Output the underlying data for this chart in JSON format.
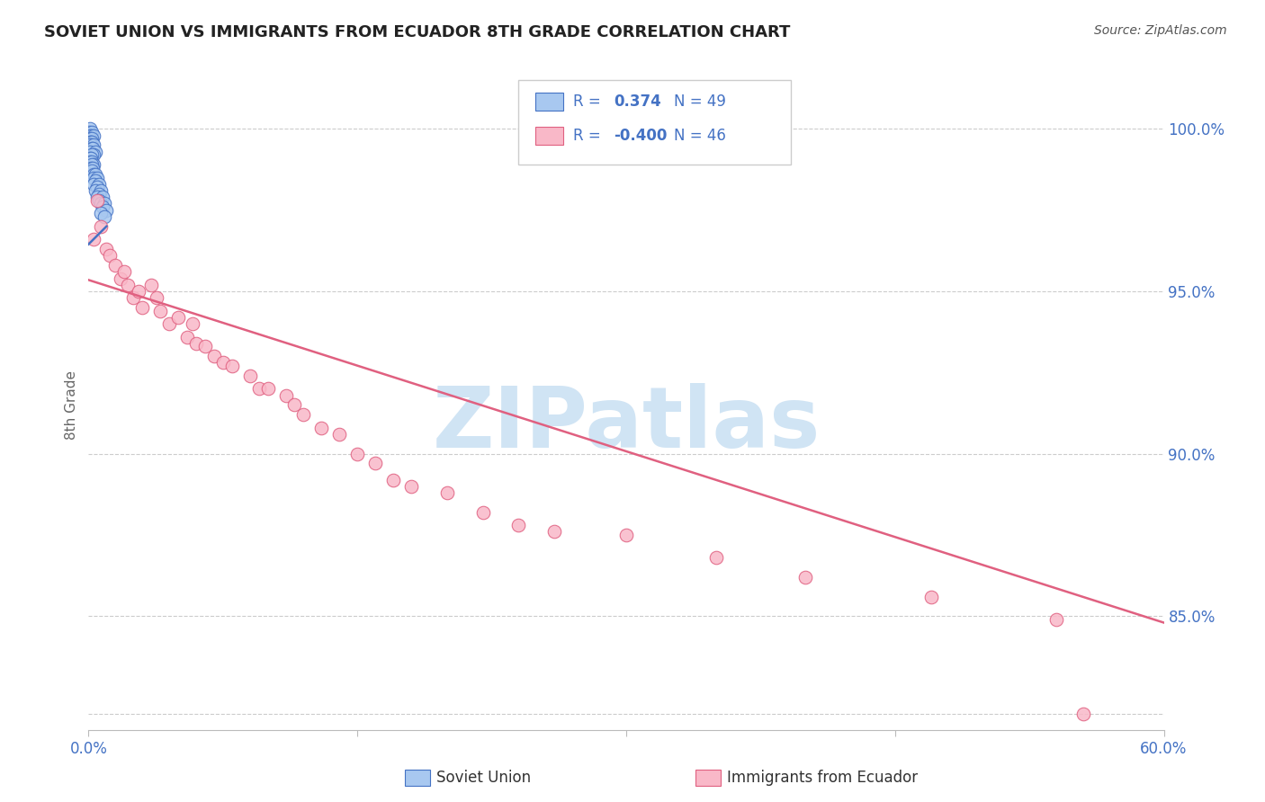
{
  "title": "SOVIET UNION VS IMMIGRANTS FROM ECUADOR 8TH GRADE CORRELATION CHART",
  "source": "Source: ZipAtlas.com",
  "ylabel": "8th Grade",
  "ytick_labels": [
    "85.0%",
    "90.0%",
    "95.0%",
    "100.0%"
  ],
  "ytick_values": [
    0.85,
    0.9,
    0.95,
    1.0
  ],
  "xlim": [
    0.0,
    0.6
  ],
  "ylim": [
    0.815,
    1.015
  ],
  "legend_blue_r": "0.374",
  "legend_blue_n": "49",
  "legend_pink_r": "-0.400",
  "legend_pink_n": "46",
  "blue_color": "#a8c8f0",
  "pink_color": "#f9b8c8",
  "blue_edge_color": "#4472c4",
  "pink_edge_color": "#e06080",
  "blue_line_color": "#4472c4",
  "pink_line_color": "#e06080",
  "watermark_color": "#d0e4f4",
  "background_color": "#ffffff",
  "grid_color": "#cccccc",
  "blue_x": [
    0.001,
    0.0005,
    0.002,
    0.001,
    0.0015,
    0.003,
    0.001,
    0.002,
    0.0008,
    0.0012,
    0.002,
    0.0015,
    0.001,
    0.003,
    0.002,
    0.0025,
    0.001,
    0.004,
    0.003,
    0.002,
    0.0008,
    0.0015,
    0.001,
    0.002,
    0.003,
    0.0018,
    0.0012,
    0.0025,
    0.002,
    0.003,
    0.004,
    0.003,
    0.005,
    0.004,
    0.003,
    0.006,
    0.005,
    0.004,
    0.007,
    0.006,
    0.005,
    0.008,
    0.006,
    0.007,
    0.009,
    0.008,
    0.01,
    0.007,
    0.009
  ],
  "blue_y": [
    1.0,
    0.999,
    0.999,
    0.998,
    0.998,
    0.998,
    0.997,
    0.997,
    0.996,
    0.996,
    0.996,
    0.995,
    0.995,
    0.995,
    0.994,
    0.994,
    0.993,
    0.993,
    0.992,
    0.992,
    0.991,
    0.991,
    0.99,
    0.99,
    0.989,
    0.989,
    0.988,
    0.988,
    0.987,
    0.986,
    0.986,
    0.985,
    0.985,
    0.984,
    0.983,
    0.983,
    0.982,
    0.981,
    0.981,
    0.98,
    0.979,
    0.979,
    0.978,
    0.977,
    0.977,
    0.976,
    0.975,
    0.974,
    0.973
  ],
  "pink_x": [
    0.003,
    0.005,
    0.007,
    0.01,
    0.012,
    0.015,
    0.018,
    0.02,
    0.022,
    0.025,
    0.028,
    0.03,
    0.035,
    0.038,
    0.04,
    0.045,
    0.05,
    0.055,
    0.058,
    0.06,
    0.065,
    0.07,
    0.075,
    0.08,
    0.09,
    0.095,
    0.1,
    0.11,
    0.115,
    0.12,
    0.13,
    0.14,
    0.15,
    0.16,
    0.17,
    0.18,
    0.2,
    0.22,
    0.24,
    0.26,
    0.3,
    0.35,
    0.4,
    0.47,
    0.54,
    0.555
  ],
  "pink_y": [
    0.966,
    0.978,
    0.97,
    0.963,
    0.961,
    0.958,
    0.954,
    0.956,
    0.952,
    0.948,
    0.95,
    0.945,
    0.952,
    0.948,
    0.944,
    0.94,
    0.942,
    0.936,
    0.94,
    0.934,
    0.933,
    0.93,
    0.928,
    0.927,
    0.924,
    0.92,
    0.92,
    0.918,
    0.915,
    0.912,
    0.908,
    0.906,
    0.9,
    0.897,
    0.892,
    0.89,
    0.888,
    0.882,
    0.878,
    0.876,
    0.875,
    0.868,
    0.862,
    0.856,
    0.849,
    0.82
  ],
  "pink_trend_x": [
    0.0,
    0.6
  ],
  "pink_trend_y": [
    0.9535,
    0.848
  ],
  "blue_trend_x": [
    0.0,
    0.01
  ],
  "blue_trend_y": [
    0.9645,
    0.97
  ]
}
